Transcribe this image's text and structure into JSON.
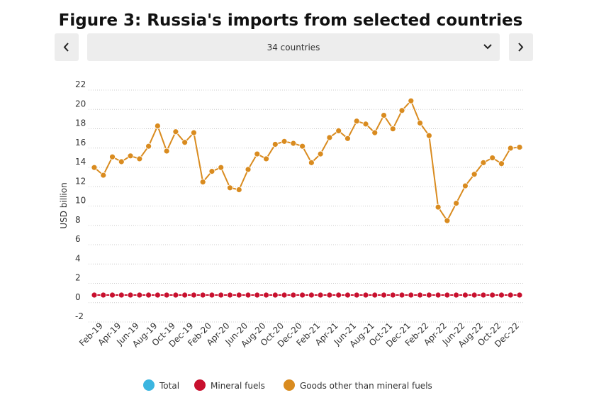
{
  "header": {
    "title": "Figure 3: Russia's imports from selected countries",
    "selector": "34 countries"
  },
  "chart_data": {
    "type": "line",
    "y_label": "USD billion",
    "categories": [
      null,
      "Feb-19",
      null,
      "Apr-19",
      null,
      "Jun-19",
      null,
      "Aug-19",
      null,
      "Oct-19",
      null,
      "Dec-19",
      null,
      "Feb-20",
      null,
      "Apr-20",
      null,
      "Jun-20",
      null,
      "Aug-20",
      null,
      "Oct-20",
      null,
      "Dec-20",
      null,
      "Feb-21",
      null,
      "Apr-21",
      null,
      "Jun-21",
      null,
      "Aug-21",
      null,
      "Oct-21",
      null,
      "Dec-21",
      null,
      "Feb-22",
      null,
      "Apr-22",
      null,
      "Jun-22",
      null,
      "Aug-22",
      null,
      "Oct-22",
      null,
      "Dec-22"
    ],
    "series": [
      {
        "name": "Total",
        "color": "#3bb5e0"
      },
      {
        "name": "Mineral fuels",
        "color": "#c8102e",
        "values": [
          0.2,
          0.2,
          0.2,
          0.2,
          0.2,
          0.2,
          0.2,
          0.2,
          0.2,
          0.2,
          0.2,
          0.2,
          0.2,
          0.2,
          0.2,
          0.2,
          0.2,
          0.2,
          0.2,
          0.2,
          0.2,
          0.2,
          0.2,
          0.2,
          0.2,
          0.2,
          0.2,
          0.2,
          0.2,
          0.2,
          0.2,
          0.2,
          0.2,
          0.2,
          0.2,
          0.2,
          0.2,
          0.2,
          0.2,
          0.2,
          0.2,
          0.2,
          0.2,
          0.2,
          0.2,
          0.2,
          0.2,
          0.2
        ]
      },
      {
        "name": "Goods other than mineral fuels",
        "color": "#d98b1f",
        "values": [
          13.4,
          12.6,
          14.5,
          14.0,
          14.6,
          14.3,
          15.6,
          17.7,
          15.1,
          17.1,
          16.0,
          17.0,
          11.9,
          13.0,
          13.4,
          11.3,
          11.1,
          13.2,
          14.8,
          14.3,
          15.8,
          16.1,
          15.9,
          15.6,
          13.9,
          14.8,
          16.5,
          17.2,
          16.4,
          18.2,
          17.9,
          17.0,
          18.8,
          17.4,
          19.3,
          20.3,
          18.0,
          16.7,
          9.3,
          7.9,
          9.7,
          11.5,
          12.7,
          13.9,
          14.4,
          13.8,
          15.4,
          15.5
        ]
      }
    ],
    "ylim": [
      -2,
      22
    ],
    "yticks": [
      -2,
      0,
      2,
      4,
      6,
      8,
      10,
      12,
      14,
      16,
      18,
      20,
      22
    ],
    "grid": true
  }
}
